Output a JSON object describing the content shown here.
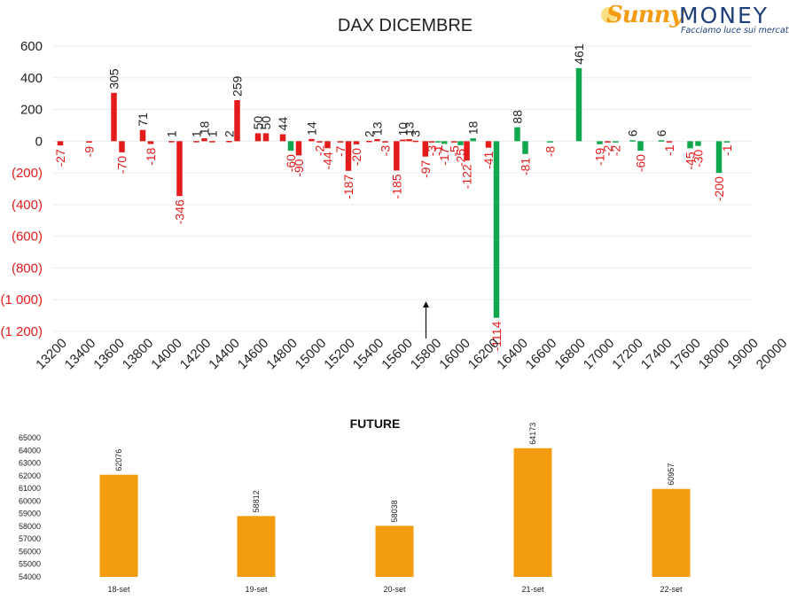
{
  "logo": {
    "brand_first": "Sunny",
    "brand_second": "MONEY",
    "tagline": "Facciamo luce sui mercati"
  },
  "colors": {
    "neg": "#e31b1b",
    "pos": "#10a84f",
    "orange": "#f39c0f",
    "text": "#222222",
    "axis": "#555555"
  },
  "chart_data": [
    {
      "type": "bar",
      "title": "DAX DICEMBRE",
      "ylim": [
        -1200,
        600
      ],
      "yticks": [
        600,
        400,
        200,
        0,
        -200,
        -400,
        -600,
        -800,
        -1000,
        -1200
      ],
      "ytick_labels": [
        "600",
        "400",
        "200",
        "0",
        "(200)",
        "(400)",
        "(600)",
        "(800)",
        "(1 000)",
        "(1 200)"
      ],
      "xtick_labels": [
        "13200",
        "13400",
        "13600",
        "13800",
        "14000",
        "14200",
        "14400",
        "14600",
        "14800",
        "15000",
        "15200",
        "15400",
        "15600",
        "15800",
        "16000",
        "16200",
        "16400",
        "16600",
        "16800",
        "17000",
        "17200",
        "17400",
        "17600",
        "18000",
        "19000",
        "20000"
      ],
      "grid": true,
      "current_price_marker_tick": "15800",
      "bars": [
        {
          "x": "13200",
          "y": -27,
          "label": "-27",
          "color": "neg"
        },
        {
          "x": "13400",
          "y": -9,
          "label": "-9",
          "color": "neg"
        },
        {
          "x": "13600",
          "y": 305,
          "label": "305",
          "color": "neg"
        },
        {
          "x": "13600",
          "y": -70,
          "label": "-70",
          "color": "neg"
        },
        {
          "x": "13800",
          "y": 71,
          "label": "71",
          "color": "neg"
        },
        {
          "x": "13800",
          "y": -18,
          "label": "-18",
          "color": "neg"
        },
        {
          "x": "14000",
          "y": 1,
          "label": "1",
          "color": "neg"
        },
        {
          "x": "14000",
          "y": -346,
          "label": "-346",
          "color": "neg"
        },
        {
          "x": "14200",
          "y": 1,
          "label": "1",
          "color": "neg"
        },
        {
          "x": "14200",
          "y": 18,
          "label": "18",
          "color": "neg"
        },
        {
          "x": "14200",
          "y": 1,
          "label": "1",
          "color": "neg"
        },
        {
          "x": "14400",
          "y": 2,
          "label": "2",
          "color": "neg"
        },
        {
          "x": "14400",
          "y": 259,
          "label": "259",
          "color": "neg"
        },
        {
          "x": "14600",
          "y": 50,
          "label": "50",
          "color": "neg"
        },
        {
          "x": "14600",
          "y": 50,
          "label": "50",
          "color": "neg"
        },
        {
          "x": "14800",
          "y": 44,
          "label": "44",
          "color": "neg"
        },
        {
          "x": "14800",
          "y": -60,
          "label": "-60",
          "color": "pos"
        },
        {
          "x": "14800",
          "y": -90,
          "label": "-90",
          "color": "neg"
        },
        {
          "x": "15000",
          "y": 14,
          "label": "14",
          "color": "neg"
        },
        {
          "x": "15000",
          "y": -2,
          "label": "-2",
          "color": "neg"
        },
        {
          "x": "15000",
          "y": -44,
          "label": "-44",
          "color": "neg"
        },
        {
          "x": "15200",
          "y": -7,
          "label": "-7",
          "color": "neg"
        },
        {
          "x": "15200",
          "y": -187,
          "label": "-187",
          "color": "neg"
        },
        {
          "x": "15200",
          "y": -20,
          "label": "-20",
          "color": "neg"
        },
        {
          "x": "15400",
          "y": 2,
          "label": "2",
          "color": "neg"
        },
        {
          "x": "15400",
          "y": 13,
          "label": "13",
          "color": "neg"
        },
        {
          "x": "15400",
          "y": -3,
          "label": "-3",
          "color": "neg"
        },
        {
          "x": "15600",
          "y": -185,
          "label": "-185",
          "color": "neg"
        },
        {
          "x": "15600",
          "y": 10,
          "label": "10",
          "color": "neg"
        },
        {
          "x": "15600",
          "y": 13,
          "label": "13",
          "color": "neg"
        },
        {
          "x": "15600",
          "y": 3,
          "label": "3",
          "color": "neg"
        },
        {
          "x": "15800",
          "y": -97,
          "label": "-97",
          "color": "neg"
        },
        {
          "x": "15800",
          "y": -3,
          "label": "-3",
          "color": "neg"
        },
        {
          "x": "15800",
          "y": -1,
          "label": "-1",
          "color": "pos"
        },
        {
          "x": "15800",
          "y": -17,
          "label": "-17",
          "color": "pos"
        },
        {
          "x": "16000",
          "y": -5,
          "label": "-5",
          "color": "neg"
        },
        {
          "x": "16000",
          "y": -25,
          "label": "-25",
          "color": "pos"
        },
        {
          "x": "16000",
          "y": -122,
          "label": "-122",
          "color": "neg"
        },
        {
          "x": "16000",
          "y": 18,
          "label": "18",
          "color": "pos"
        },
        {
          "x": "16200",
          "y": -41,
          "label": "-41",
          "color": "neg"
        },
        {
          "x": "16200",
          "y": -1114,
          "label": "-1114",
          "color": "pos"
        },
        {
          "x": "16400",
          "y": 88,
          "label": "88",
          "color": "pos"
        },
        {
          "x": "16400",
          "y": -81,
          "label": "-81",
          "color": "pos"
        },
        {
          "x": "16600",
          "y": -8,
          "label": "-8",
          "color": "pos"
        },
        {
          "x": "16800",
          "y": 461,
          "label": "461",
          "color": "pos"
        },
        {
          "x": "17000",
          "y": -19,
          "label": "-19",
          "color": "pos"
        },
        {
          "x": "17000",
          "y": -2,
          "label": "-2",
          "color": "neg"
        },
        {
          "x": "17000",
          "y": -2,
          "label": "-2",
          "color": "pos"
        },
        {
          "x": "17200",
          "y": 6,
          "label": "6",
          "color": "pos"
        },
        {
          "x": "17200",
          "y": -60,
          "label": "-60",
          "color": "pos"
        },
        {
          "x": "17400",
          "y": 6,
          "label": "6",
          "color": "pos"
        },
        {
          "x": "17400",
          "y": -1,
          "label": "-1",
          "color": "neg"
        },
        {
          "x": "17600",
          "y": -45,
          "label": "-45",
          "color": "pos"
        },
        {
          "x": "17600",
          "y": -30,
          "label": "-30",
          "color": "pos"
        },
        {
          "x": "18000",
          "y": -200,
          "label": "-200",
          "color": "pos"
        },
        {
          "x": "18000",
          "y": -1,
          "label": "-1",
          "color": "pos"
        }
      ]
    },
    {
      "type": "bar",
      "title": "FUTURE",
      "categories": [
        "18-set",
        "19-set",
        "20-set",
        "21-set",
        "22-set"
      ],
      "values": [
        62076,
        58812,
        58038,
        64173,
        60957
      ],
      "ylim": [
        54000,
        65000
      ],
      "yticks": [
        65000,
        64000,
        63000,
        62000,
        61000,
        60000,
        59000,
        58000,
        57000,
        56000,
        55000,
        54000
      ],
      "grid": false
    }
  ]
}
